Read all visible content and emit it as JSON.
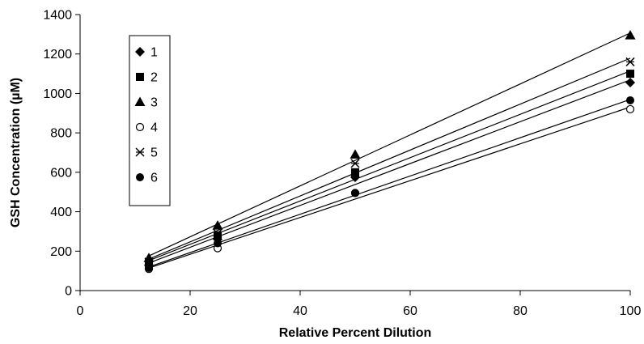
{
  "chart_data": {
    "type": "scatter",
    "xlabel": "Relative Percent Dilution",
    "ylabel": "GSH Concentration (µM)",
    "xlim": [
      0,
      100
    ],
    "ylim": [
      0,
      1400
    ],
    "x_ticks": [
      0,
      20,
      40,
      60,
      80,
      100
    ],
    "y_ticks": [
      0,
      200,
      400,
      600,
      800,
      1000,
      1200,
      1400
    ],
    "grid": false,
    "legend_position": "top-left",
    "trendlines": "linear fit per series",
    "x": [
      12.5,
      25,
      50,
      100
    ],
    "series": [
      {
        "name": "1",
        "marker": "diamond",
        "values": [
          130,
          260,
          575,
          1055
        ]
      },
      {
        "name": "2",
        "marker": "square",
        "values": [
          140,
          280,
          600,
          1100
        ]
      },
      {
        "name": "3",
        "marker": "triangle",
        "values": [
          165,
          330,
          690,
          1295
        ]
      },
      {
        "name": "4",
        "marker": "open-circle",
        "values": [
          110,
          215,
          495,
          920
        ]
      },
      {
        "name": "5",
        "marker": "asterisk",
        "values": [
          145,
          290,
          645,
          1160
        ]
      },
      {
        "name": "6",
        "marker": "filled-circle",
        "values": [
          115,
          240,
          495,
          965
        ]
      }
    ],
    "colors": {
      "marks": "#000000",
      "background": "#ffffff"
    }
  }
}
